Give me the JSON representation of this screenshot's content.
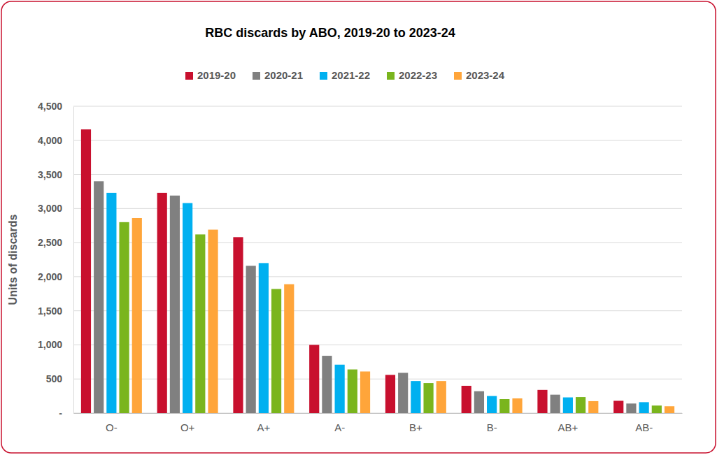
{
  "chart_data": {
    "type": "bar",
    "title": "RBC discards by ABO, 2019-20 to 2023-24",
    "y_label": "Units of discards",
    "categories": [
      "O-",
      "O+",
      "A+",
      "A-",
      "B+",
      "B-",
      "AB+",
      "AB-"
    ],
    "series": [
      {
        "name": "2019-20",
        "color": "#c8102e",
        "values": [
          4160,
          3230,
          2580,
          1000,
          560,
          400,
          340,
          180
        ]
      },
      {
        "name": "2020-21",
        "color": "#808080",
        "values": [
          3400,
          3190,
          2160,
          840,
          590,
          320,
          270,
          140
        ]
      },
      {
        "name": "2021-22",
        "color": "#00b0f0",
        "values": [
          3230,
          3080,
          2200,
          710,
          470,
          250,
          230,
          160
        ]
      },
      {
        "name": "2022-23",
        "color": "#7ab51d",
        "values": [
          2800,
          2620,
          1820,
          640,
          440,
          205,
          235,
          110
        ]
      },
      {
        "name": "2023-24",
        "color": "#ffa53a",
        "values": [
          2860,
          2690,
          1890,
          610,
          470,
          215,
          175,
          100
        ]
      }
    ],
    "ylim": [
      0,
      4500
    ],
    "yticks": [
      {
        "value": 0,
        "label": "-"
      },
      500,
      {
        "value": 1000,
        "label": "1,000"
      },
      {
        "value": 1500,
        "label": "1,500"
      },
      {
        "value": 2000,
        "label": "2,000"
      },
      {
        "value": 2500,
        "label": "2,500"
      },
      {
        "value": 3000,
        "label": "3,000"
      },
      {
        "value": 3500,
        "label": "3,500"
      },
      {
        "value": 4000,
        "label": "4,000"
      },
      {
        "value": 4500,
        "label": "4,500"
      }
    ],
    "grid": true,
    "legend": "top"
  }
}
